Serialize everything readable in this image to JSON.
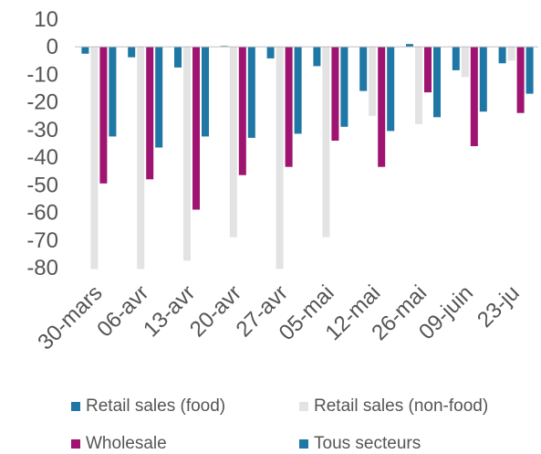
{
  "chart_data": {
    "type": "bar",
    "categories": [
      "30-mars",
      "06-avr",
      "13-avr",
      "20-avr",
      "27-avr",
      "05-mai",
      "12-mai",
      "26-mai",
      "09-juin",
      "23-ju"
    ],
    "series": [
      {
        "name": "Retail sales (food)",
        "color": "#1F77A5",
        "values": [
          -2.5,
          -3.8,
          -7.5,
          0.3,
          -4.2,
          -7,
          -16,
          1,
          -8.5,
          -6
        ]
      },
      {
        "name": "Retail sales (non-food)",
        "color": "#E3E3E3",
        "values": [
          -80.5,
          -80.5,
          -77.5,
          -69,
          -80.5,
          -69,
          -25,
          -28,
          -11,
          -5
        ]
      },
      {
        "name": "Wholesale",
        "color": "#9E1470",
        "values": [
          -49.5,
          -48,
          -59,
          -46.5,
          -43.5,
          -34,
          -43.5,
          -16.5,
          -36,
          -24
        ]
      },
      {
        "name": "Tous secteurs",
        "color": "#1F77A5",
        "values": [
          -32.5,
          -36.5,
          -32.5,
          -33,
          -31.5,
          -29,
          -30.5,
          -25.5,
          -23.5,
          -17
        ]
      }
    ],
    "yticks": [
      10,
      0,
      -10,
      -20,
      -30,
      -40,
      -50,
      -60,
      -70,
      -80
    ],
    "ylim": [
      -80,
      10
    ],
    "grid": false,
    "legend_position": "bottom"
  }
}
